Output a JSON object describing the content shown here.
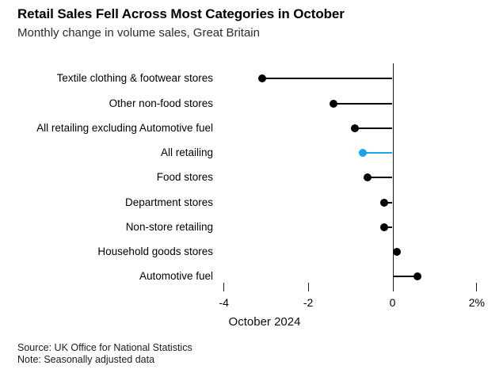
{
  "header": {
    "title": "Retail Sales Fell Across Most Categories in October",
    "subtitle": "Monthly change in volume sales, Great Britain"
  },
  "chart_data": {
    "type": "bar",
    "style": "lollipop",
    "orientation": "horizontal",
    "title": "Retail Sales Fell Across Most Categories in October",
    "subtitle": "Monthly change in volume sales, Great Britain",
    "categories": [
      "Textile clothing & footwear stores",
      "Other non-food stores",
      "All retailing excluding Automotive fuel",
      "All retailing",
      "Food stores",
      "Department stores",
      "Non-store retailing",
      "Household goods stores",
      "Automotive fuel"
    ],
    "values": [
      -3.1,
      -1.4,
      -0.9,
      -0.7,
      -0.6,
      -0.2,
      -0.2,
      0.1,
      0.6
    ],
    "unit": "%",
    "highlight_category": "All retailing",
    "highlight_color": "#18a3ec",
    "dot_color": "#000000",
    "xlabel": "October 2024",
    "ylabel": "",
    "xlim": [
      -4.25,
      2.4
    ],
    "grid": false,
    "legend": "none",
    "x_ticks": [
      {
        "value": -4,
        "label": "-4"
      },
      {
        "value": -2,
        "label": "-2"
      },
      {
        "value": 0,
        "label": "0"
      },
      {
        "value": 2,
        "label": "2%"
      }
    ]
  },
  "footer": {
    "source": "Source: UK Office for National Statistics",
    "note": "Note: Seasonally adjusted data"
  }
}
